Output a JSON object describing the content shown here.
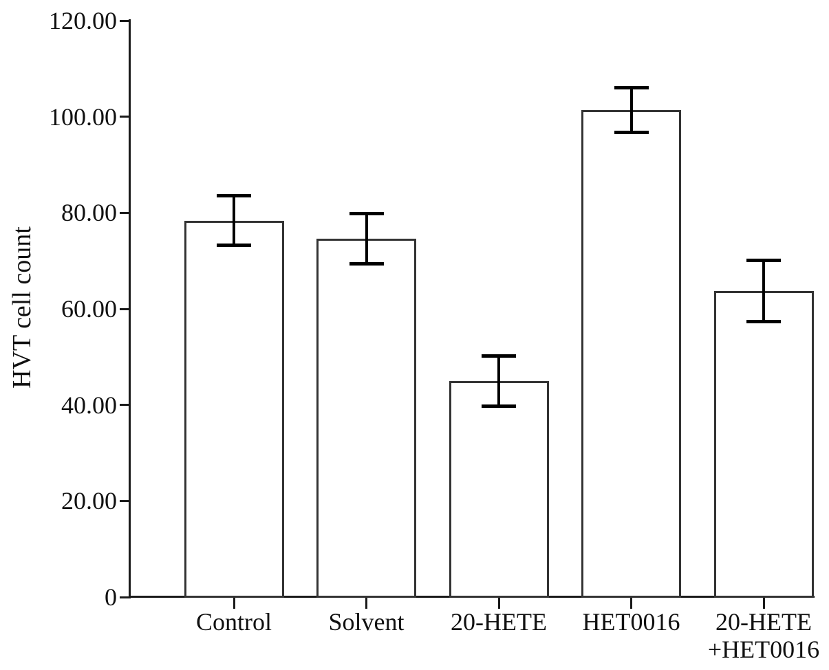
{
  "chart_data": {
    "type": "bar",
    "title": "",
    "xlabel": "",
    "ylabel": "HVT cell count",
    "ylim": [
      0,
      120
    ],
    "ytick_values": [
      0,
      20,
      40,
      60,
      80,
      100,
      120
    ],
    "ytick_labels": [
      "0",
      "20.00",
      "40.00",
      "60.00",
      "80.00",
      "100.00",
      "120.00"
    ],
    "categories": [
      "Control",
      "Solvent",
      "20-HETE",
      "HET0016",
      "20-HETE\n+HET0016"
    ],
    "values": [
      78.4,
      74.6,
      45.0,
      101.4,
      63.7
    ],
    "errors": [
      5.2,
      5.2,
      5.2,
      4.6,
      6.4
    ],
    "grid": false,
    "legend": false,
    "colors": {
      "background": "#ffffff",
      "bar_fill": "#ffffff",
      "bar_outline": "#333333",
      "error_bar": "#000000",
      "axis": "#1a1a1a",
      "text": "#111111"
    }
  }
}
